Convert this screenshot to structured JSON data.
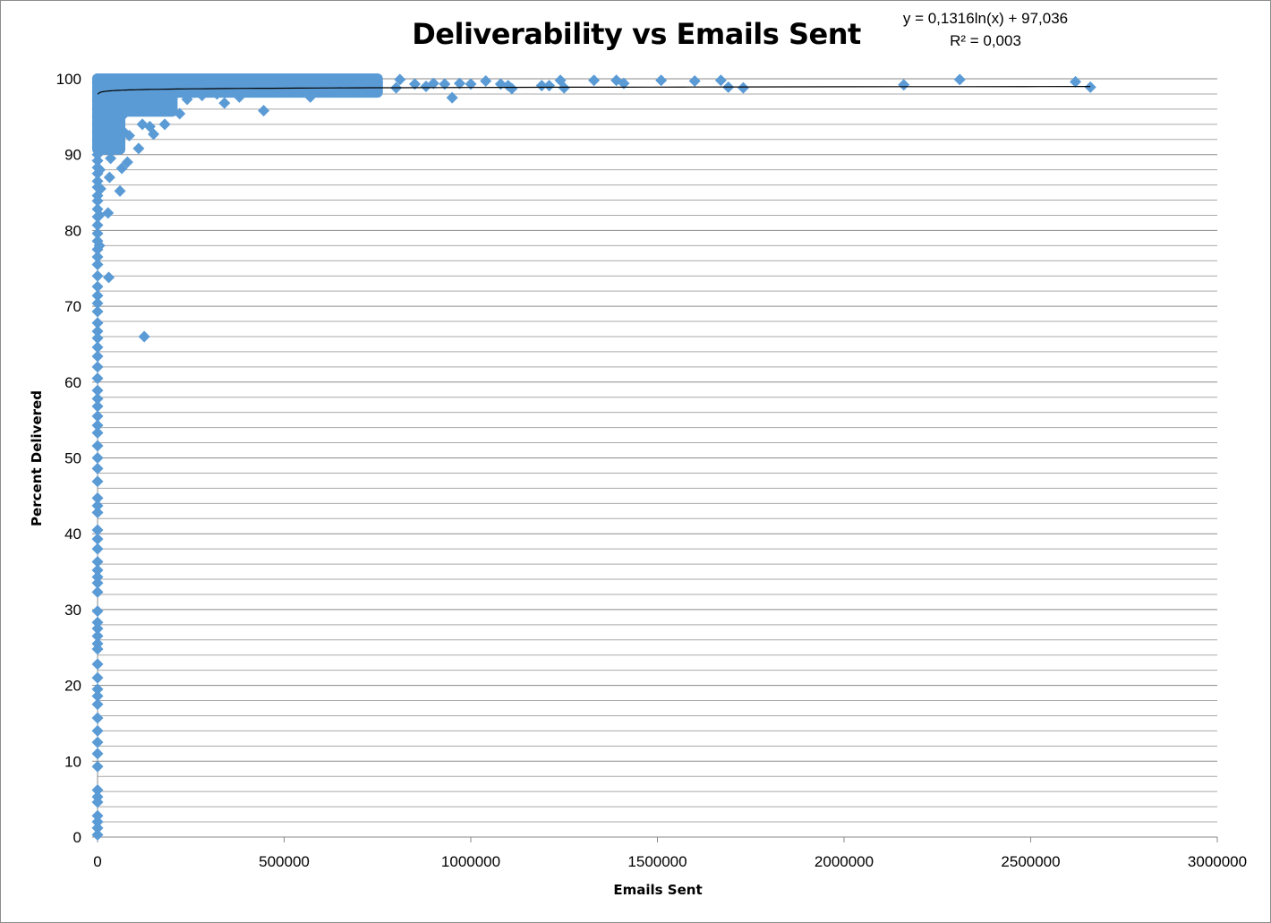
{
  "chart_data": {
    "type": "scatter",
    "title": "Deliverability vs Emails Sent",
    "xlabel": "Emails Sent",
    "ylabel": "Percent Delivered",
    "xlim": [
      0,
      3000000
    ],
    "ylim": [
      0,
      100
    ],
    "x_ticks": [
      "0",
      "500000",
      "1000000",
      "1500000",
      "2000000",
      "2500000",
      "3000000"
    ],
    "y_ticks": [
      "0",
      "10",
      "20",
      "30",
      "40",
      "50",
      "60",
      "70",
      "80",
      "90",
      "100"
    ],
    "grid": "horizontal",
    "marker": "diamond",
    "marker_color": "#5b9bd5",
    "trendline": {
      "type": "logarithmic",
      "equation": "y = 0,1316ln(x) + 97,036",
      "r_squared": "R² = 0,003",
      "a": 0.1316,
      "b": 97.036,
      "color": "#000000"
    },
    "points": [
      [
        0,
        0.3
      ],
      [
        0,
        1.2
      ],
      [
        0,
        2.0
      ],
      [
        0,
        2.8
      ],
      [
        0,
        4.6
      ],
      [
        0,
        5.3
      ],
      [
        0,
        6.2
      ],
      [
        0,
        9.3
      ],
      [
        0,
        11.0
      ],
      [
        0,
        12.5
      ],
      [
        0,
        14.0
      ],
      [
        0,
        15.7
      ],
      [
        0,
        17.5
      ],
      [
        0,
        18.6
      ],
      [
        0,
        19.5
      ],
      [
        0,
        21.0
      ],
      [
        0,
        22.8
      ],
      [
        0,
        24.8
      ],
      [
        0,
        25.5
      ],
      [
        0,
        26.5
      ],
      [
        0,
        27.5
      ],
      [
        0,
        28.3
      ],
      [
        0,
        29.8
      ],
      [
        0,
        32.3
      ],
      [
        0,
        33.5
      ],
      [
        0,
        34.3
      ],
      [
        0,
        35.2
      ],
      [
        0,
        36.3
      ],
      [
        0,
        38.0
      ],
      [
        0,
        39.3
      ],
      [
        0,
        40.5
      ],
      [
        0,
        42.8
      ],
      [
        0,
        43.7
      ],
      [
        0,
        44.7
      ],
      [
        0,
        46.9
      ],
      [
        0,
        48.6
      ],
      [
        0,
        50.0
      ],
      [
        0,
        51.6
      ],
      [
        0,
        53.3
      ],
      [
        0,
        54.3
      ],
      [
        0,
        55.5
      ],
      [
        0,
        56.8
      ],
      [
        0,
        57.8
      ],
      [
        0,
        58.9
      ],
      [
        0,
        60.5
      ],
      [
        0,
        62.0
      ],
      [
        0,
        63.4
      ],
      [
        0,
        64.6
      ],
      [
        0,
        65.8
      ],
      [
        0,
        66.7
      ],
      [
        0,
        67.8
      ],
      [
        0,
        69.3
      ],
      [
        0,
        70.4
      ],
      [
        0,
        71.4
      ],
      [
        0,
        72.6
      ],
      [
        0,
        74.0
      ],
      [
        0,
        75.5
      ],
      [
        0,
        76.5
      ],
      [
        0,
        77.5
      ],
      [
        0,
        78.6
      ],
      [
        0,
        79.6
      ],
      [
        0,
        80.7
      ],
      [
        0,
        81.8
      ],
      [
        0,
        82.8
      ],
      [
        0,
        83.9
      ],
      [
        0,
        84.6
      ],
      [
        0,
        85.7
      ],
      [
        0,
        86.5
      ],
      [
        0,
        87.5
      ],
      [
        0,
        88.3
      ],
      [
        0,
        89.2
      ],
      [
        0,
        90.0
      ],
      [
        0,
        91.0
      ],
      [
        0,
        91.9
      ],
      [
        0,
        93.0
      ],
      [
        0,
        94.0
      ],
      [
        0,
        95.0
      ],
      [
        0,
        96.0
      ],
      [
        0,
        97.1
      ],
      [
        0,
        98.2
      ],
      [
        0,
        99.5
      ],
      [
        5000,
        78.0
      ],
      [
        5000,
        82.0
      ],
      [
        8000,
        85.5
      ],
      [
        6000,
        88.0
      ],
      [
        10000,
        91.0
      ],
      [
        12000,
        93.5
      ],
      [
        15000,
        95.5
      ],
      [
        18000,
        97.0
      ],
      [
        20000,
        98.5
      ],
      [
        25000,
        99.6
      ],
      [
        28000,
        82.3
      ],
      [
        30000,
        73.8
      ],
      [
        32000,
        87.0
      ],
      [
        35000,
        89.5
      ],
      [
        38000,
        92.0
      ],
      [
        40000,
        94.5
      ],
      [
        45000,
        96.5
      ],
      [
        50000,
        98.0
      ],
      [
        55000,
        99.4
      ],
      [
        55000,
        91.0
      ],
      [
        60000,
        85.2
      ],
      [
        65000,
        88.2
      ],
      [
        70000,
        93.0
      ],
      [
        75000,
        95.5
      ],
      [
        80000,
        89.0
      ],
      [
        85000,
        92.5
      ],
      [
        90000,
        97.0
      ],
      [
        100000,
        99.0
      ],
      [
        110000,
        90.8
      ],
      [
        120000,
        94.0
      ],
      [
        125000,
        66.0
      ],
      [
        140000,
        93.7
      ],
      [
        150000,
        92.7
      ],
      [
        160000,
        96.0
      ],
      [
        180000,
        94.0
      ],
      [
        200000,
        97.5
      ],
      [
        220000,
        95.4
      ],
      [
        240000,
        97.3
      ],
      [
        260000,
        98.2
      ],
      [
        280000,
        97.8
      ],
      [
        300000,
        99.2
      ],
      [
        320000,
        98.0
      ],
      [
        340000,
        96.8
      ],
      [
        360000,
        98.8
      ],
      [
        380000,
        97.6
      ],
      [
        400000,
        99.5
      ],
      [
        420000,
        98.6
      ],
      [
        445000,
        95.8
      ],
      [
        460000,
        99.0
      ],
      [
        480000,
        99.8
      ],
      [
        500000,
        98.6
      ],
      [
        520000,
        99.4
      ],
      [
        540000,
        99.7
      ],
      [
        570000,
        97.6
      ],
      [
        600000,
        99.4
      ],
      [
        640000,
        99.6
      ],
      [
        680000,
        99.0
      ],
      [
        720000,
        99.2
      ],
      [
        750000,
        99.5
      ],
      [
        800000,
        98.8
      ],
      [
        810000,
        99.9
      ],
      [
        850000,
        99.3
      ],
      [
        880000,
        99.0
      ],
      [
        900000,
        99.4
      ],
      [
        930000,
        99.3
      ],
      [
        950000,
        97.5
      ],
      [
        970000,
        99.4
      ],
      [
        1000000,
        99.3
      ],
      [
        1040000,
        99.7
      ],
      [
        1080000,
        99.3
      ],
      [
        1100000,
        99.1
      ],
      [
        1110000,
        98.7
      ],
      [
        1190000,
        99.1
      ],
      [
        1210000,
        99.1
      ],
      [
        1240000,
        99.8
      ],
      [
        1250000,
        98.8
      ],
      [
        1330000,
        99.8
      ],
      [
        1390000,
        99.8
      ],
      [
        1410000,
        99.4
      ],
      [
        1510000,
        99.8
      ],
      [
        1600000,
        99.7
      ],
      [
        1670000,
        99.8
      ],
      [
        1690000,
        98.9
      ],
      [
        1730000,
        98.8
      ],
      [
        2160000,
        99.2
      ],
      [
        2310000,
        99.9
      ],
      [
        2620000,
        99.6
      ],
      [
        2660000,
        98.9
      ]
    ],
    "filled_regions": [
      {
        "x_range": [
          0,
          750000
        ],
        "y_range": [
          97.5,
          100
        ]
      },
      {
        "x_range": [
          0,
          200000
        ],
        "y_range": [
          95,
          100
        ]
      },
      {
        "x_range": [
          0,
          60000
        ],
        "y_range": [
          90,
          100
        ]
      }
    ]
  }
}
